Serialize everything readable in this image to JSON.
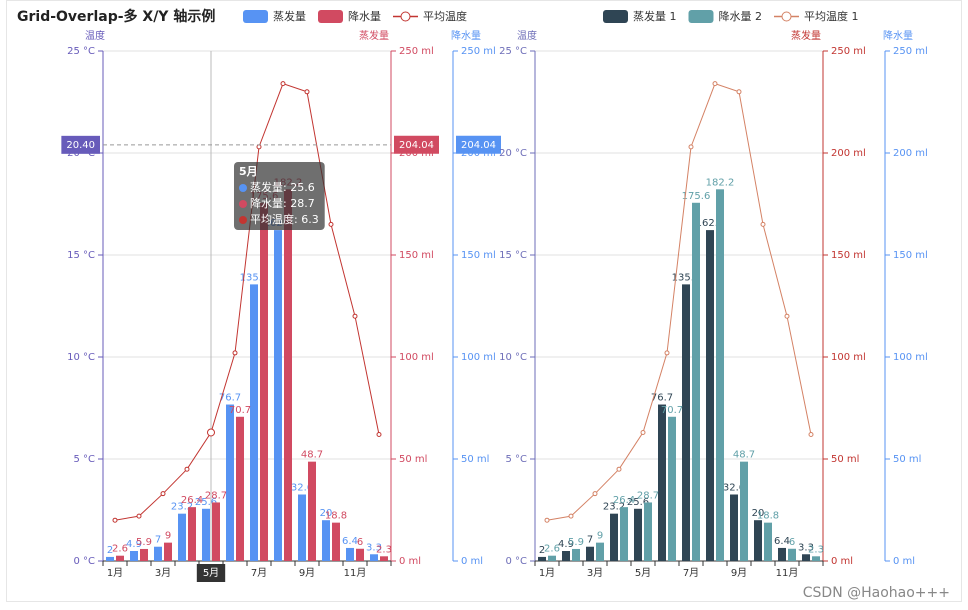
{
  "title": "Grid-Overlap-多 X/Y 轴示例",
  "watermark": "CSDN @Haohao+++",
  "chart_data": [
    {
      "type": "bar",
      "categories": [
        "1月",
        null,
        "3月",
        null,
        "5月",
        null,
        "7月",
        null,
        "9月",
        null,
        "11月",
        null
      ],
      "y_name": "温度",
      "y_color": "#675bba",
      "ylim": [
        0,
        25
      ],
      "yticks": [
        {
          "value": 0,
          "label": "0 °C"
        },
        {
          "value": 5,
          "label": "5 °C"
        },
        {
          "value": 10,
          "label": "10 °C"
        },
        {
          "value": 15,
          "label": "15 °C"
        },
        {
          "value": 20,
          "label": "20 °C"
        },
        {
          "value": 25,
          "label": "25 °C"
        }
      ],
      "y2_name": "蒸发量",
      "y2_color": "#d14a61",
      "y2lim": [
        0,
        250
      ],
      "y2ticks": [
        {
          "value": 0,
          "label": "0 ml"
        },
        {
          "value": 50,
          "label": "50 ml"
        },
        {
          "value": 100,
          "label": "100 ml"
        },
        {
          "value": 150,
          "label": "150 ml"
        },
        {
          "value": 200,
          "label": "200 ml"
        },
        {
          "value": 250,
          "label": "250 ml"
        }
      ],
      "y3_name": "降水量",
      "y3_color": "#5793f3",
      "y3lim": [
        0,
        250
      ],
      "y3ticks": [
        {
          "value": 0,
          "label": "0 ml"
        },
        {
          "value": 50,
          "label": "50 ml"
        },
        {
          "value": 100,
          "label": "100 ml"
        },
        {
          "value": 150,
          "label": "150 ml"
        },
        {
          "value": 200,
          "label": "200 ml"
        },
        {
          "value": 250,
          "label": "250 ml"
        }
      ],
      "grid": true,
      "series": [
        {
          "name": "蒸发量",
          "type": "bar",
          "axis": "y2",
          "color": "#5793f3",
          "values": [
            2,
            4.9,
            7,
            23.2,
            25.6,
            76.7,
            135.6,
            162.2,
            32.6,
            20,
            6.4,
            3.3
          ]
        },
        {
          "name": "降水量",
          "type": "bar",
          "axis": "y3",
          "color": "#d14a61",
          "values": [
            2.6,
            5.9,
            9,
            26.4,
            28.7,
            70.7,
            175.6,
            182.2,
            48.7,
            18.8,
            6,
            2.3
          ]
        },
        {
          "name": "平均温度",
          "type": "line",
          "axis": "y",
          "color": "#c23531",
          "values": [
            2,
            2.2,
            3.3,
            4.5,
            6.3,
            10.2,
            20.3,
            23.4,
            23,
            16.5,
            12,
            6.2
          ]
        }
      ],
      "axis_pointer": {
        "x": "5月",
        "x_index": 4,
        "labels": [
          {
            "value": 20.4,
            "label": "20.40",
            "axis": "y"
          },
          {
            "value": 204.04,
            "label": "204.04",
            "axis": "y2"
          },
          {
            "value": 204.04,
            "label": "204.04",
            "axis": "y3"
          }
        ]
      },
      "tooltip": {
        "title": "5月",
        "rows": [
          "蒸发量: 25.6",
          "降水量: 28.7",
          "平均温度: 6.3"
        ]
      }
    },
    {
      "type": "bar",
      "categories": [
        "1月",
        null,
        "3月",
        null,
        "5月",
        null,
        "7月",
        null,
        "9月",
        null,
        "11月",
        null
      ],
      "y_name": "温度",
      "y_color": "#6e6eb8",
      "ylim": [
        0,
        25
      ],
      "yticks": [
        {
          "value": 0,
          "label": "0 °C"
        },
        {
          "value": 5,
          "label": "5 °C"
        },
        {
          "value": 10,
          "label": "10 °C"
        },
        {
          "value": 15,
          "label": "15 °C"
        },
        {
          "value": 20,
          "label": "20 °C"
        },
        {
          "value": 25,
          "label": "25 °C"
        }
      ],
      "y2_name": "蒸发量",
      "y2_color": "#c23531",
      "y2lim": [
        0,
        250
      ],
      "y2ticks": [
        {
          "value": 0,
          "label": "0 ml"
        },
        {
          "value": 50,
          "label": "50 ml"
        },
        {
          "value": 100,
          "label": "100 ml"
        },
        {
          "value": 150,
          "label": "150 ml"
        },
        {
          "value": 200,
          "label": "200 ml"
        },
        {
          "value": 250,
          "label": "250 ml"
        }
      ],
      "y3_name": "降水量",
      "y3_color": "#5793f3",
      "y3lim": [
        0,
        250
      ],
      "y3ticks": [
        {
          "value": 0,
          "label": "0 ml"
        },
        {
          "value": 50,
          "label": "50 ml"
        },
        {
          "value": 100,
          "label": "100 ml"
        },
        {
          "value": 150,
          "label": "150 ml"
        },
        {
          "value": 200,
          "label": "200 ml"
        },
        {
          "value": 250,
          "label": "250 ml"
        }
      ],
      "grid": true,
      "series": [
        {
          "name": "蒸发量 1",
          "type": "bar",
          "axis": "y2",
          "color": "#2f4554",
          "values": [
            2,
            4.9,
            7,
            23.2,
            25.6,
            76.7,
            135.6,
            162.2,
            32.6,
            20,
            6.4,
            3.3
          ]
        },
        {
          "name": "降水量 2",
          "type": "bar",
          "axis": "y3",
          "color": "#61a0a8",
          "values": [
            2.6,
            5.9,
            9,
            26.4,
            28.7,
            70.7,
            175.6,
            182.2,
            48.7,
            18.8,
            6,
            2.3
          ]
        },
        {
          "name": "平均温度 1",
          "type": "line",
          "axis": "y",
          "color": "#d48265",
          "values": [
            2,
            2.2,
            3.3,
            4.5,
            6.3,
            10.2,
            20.3,
            23.4,
            23,
            16.5,
            12,
            6.2
          ]
        }
      ]
    }
  ]
}
